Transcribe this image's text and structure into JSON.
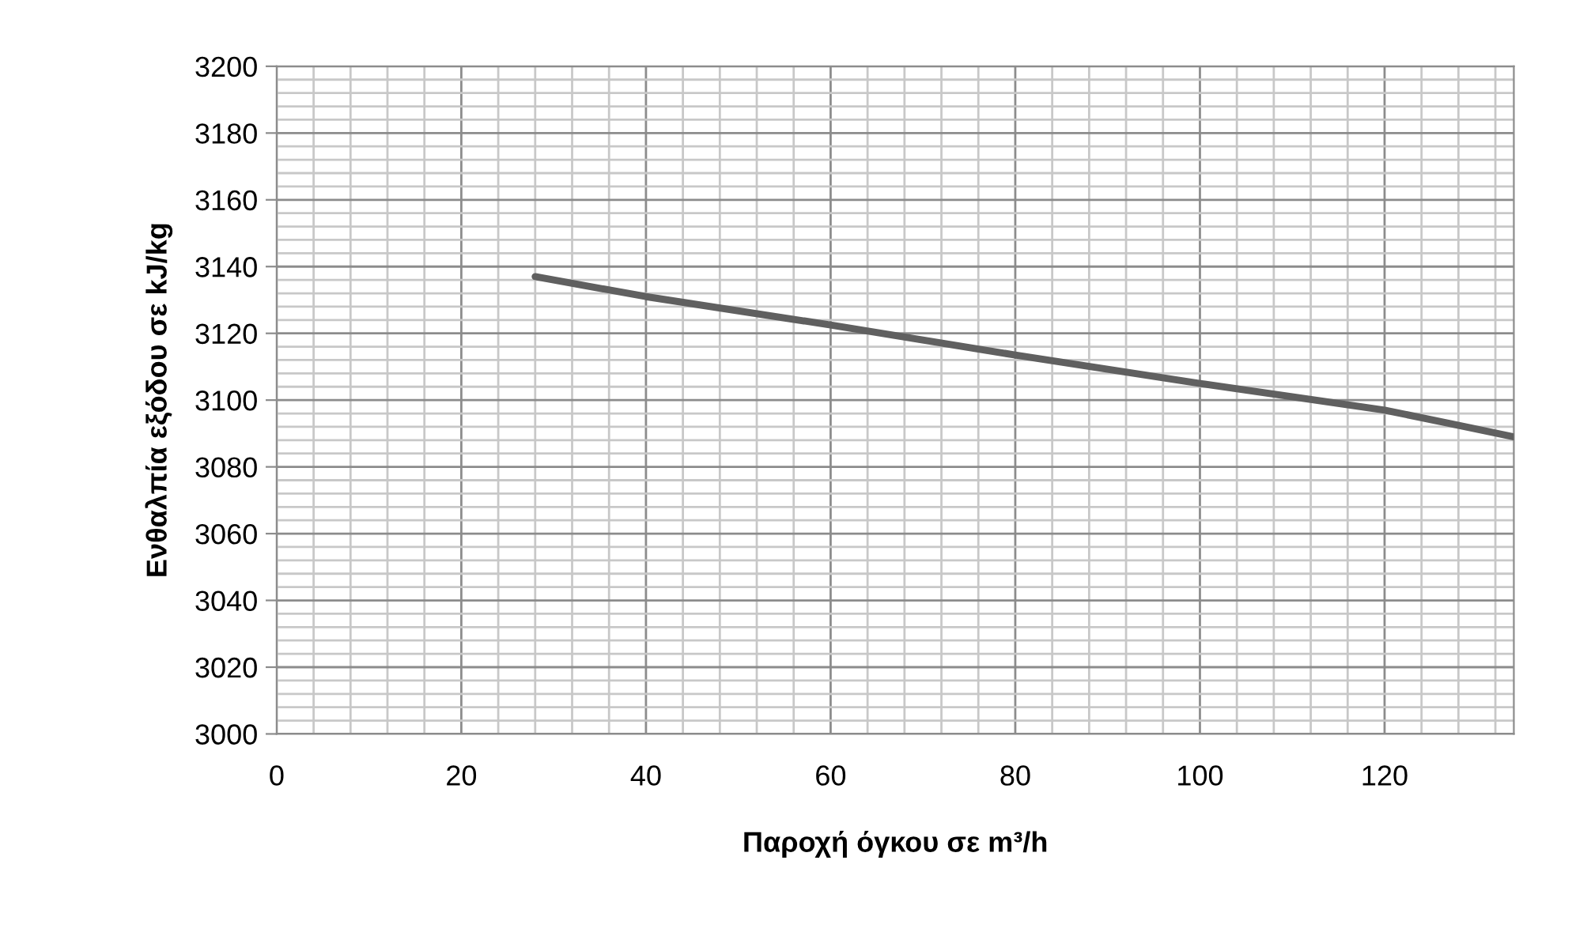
{
  "chart_data": {
    "type": "line",
    "xlabel": "Παροχή όγκου σε m³/h",
    "ylabel": "Ενθαλπία εξόδου σε kJ/kg",
    "series": [
      {
        "color": "#606060",
        "x": [
          28,
          40,
          60,
          80,
          100,
          120,
          127,
          134
        ],
        "values": [
          3137,
          3131,
          3122.5,
          3113.5,
          3105,
          3097,
          3093,
          3089
        ]
      }
    ],
    "xlim": [
      0,
      134
    ],
    "xticks": [
      0,
      20,
      40,
      60,
      80,
      100,
      120
    ],
    "ylim": [
      3000,
      3200
    ],
    "yticks": [
      3000,
      3020,
      3040,
      3060,
      3080,
      3100,
      3120,
      3140,
      3160,
      3180,
      3200
    ],
    "grid": true,
    "legend": false,
    "marker": "none",
    "line_style": "solid"
  }
}
